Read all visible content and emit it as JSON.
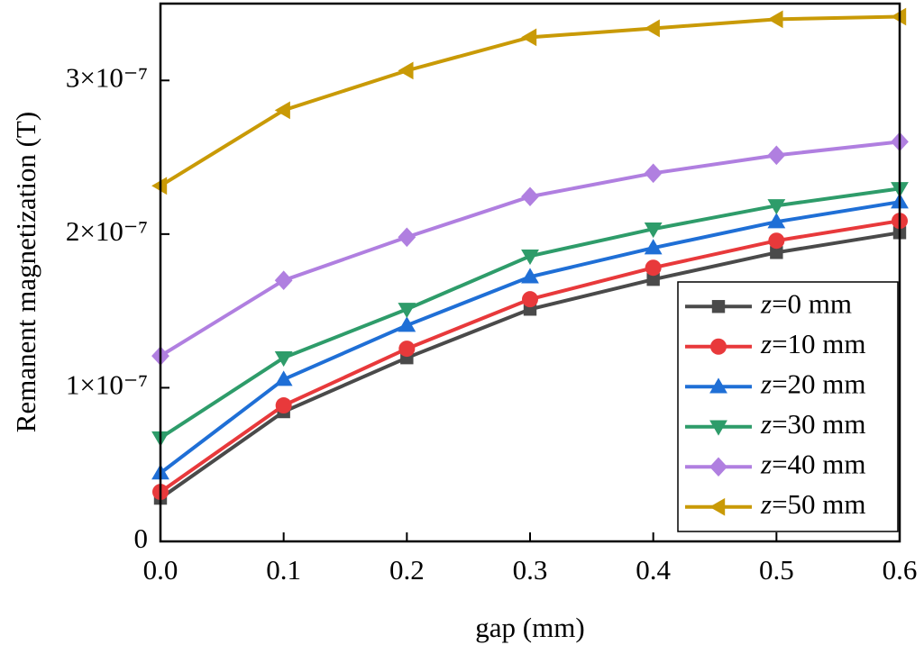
{
  "chart_data": {
    "type": "line",
    "x_label": "gap (mm)",
    "y_label": "Remanent magnetization (T)",
    "x": [
      0,
      0.1,
      0.2,
      0.3,
      0.4,
      0.5,
      0.6
    ],
    "xlim": [
      0,
      0.6
    ],
    "xticks": [
      {
        "value": 0,
        "label": "0.0"
      },
      0.1,
      0.2,
      0.3,
      0.4,
      0.5,
      0.6
    ],
    "ylim": [
      0,
      3.5e-07
    ],
    "yticks": [
      0,
      {
        "value": 1e-07,
        "label": "1×10⁻⁷"
      },
      {
        "value": 2e-07,
        "label": "2×10⁻⁷"
      },
      {
        "value": 3e-07,
        "label": "3×10⁻⁷"
      }
    ],
    "legend": "lower-right",
    "series": [
      {
        "name": "z=0 mm",
        "color": "#4a4a4a",
        "marker": "square",
        "values": [
          2.81e-08,
          8.44e-08,
          1.195e-07,
          1.511e-07,
          1.705e-07,
          1.88e-07,
          2.009e-07
        ]
      },
      {
        "name": "z=10 mm",
        "color": "#e8393b",
        "marker": "circle",
        "values": [
          3.22e-08,
          8.85e-08,
          1.254e-07,
          1.576e-07,
          1.781e-07,
          1.957e-07,
          2.086e-07
        ]
      },
      {
        "name": "z=20 mm",
        "color": "#1f6fd6",
        "marker": "triangle-up",
        "values": [
          4.45e-08,
          1.054e-07,
          1.406e-07,
          1.722e-07,
          1.91e-07,
          2.08e-07,
          2.209e-07
        ]
      },
      {
        "name": "z=30 mm",
        "color": "#2e9c6a",
        "marker": "triangle-down",
        "values": [
          6.74e-08,
          1.195e-07,
          1.511e-07,
          1.857e-07,
          2.033e-07,
          2.185e-07,
          2.296e-07
        ]
      },
      {
        "name": "z=40 mm",
        "color": "#b07fe0",
        "marker": "diamond",
        "values": [
          1.207e-07,
          1.699e-07,
          1.98e-07,
          2.244e-07,
          2.396e-07,
          2.513e-07,
          2.601e-07
        ]
      },
      {
        "name": "z=50 mm",
        "color": "#c99a06",
        "marker": "triangle-left",
        "values": [
          2.314e-07,
          2.806e-07,
          3.064e-07,
          3.281e-07,
          3.339e-07,
          3.398e-07,
          3.415e-07
        ]
      }
    ]
  }
}
